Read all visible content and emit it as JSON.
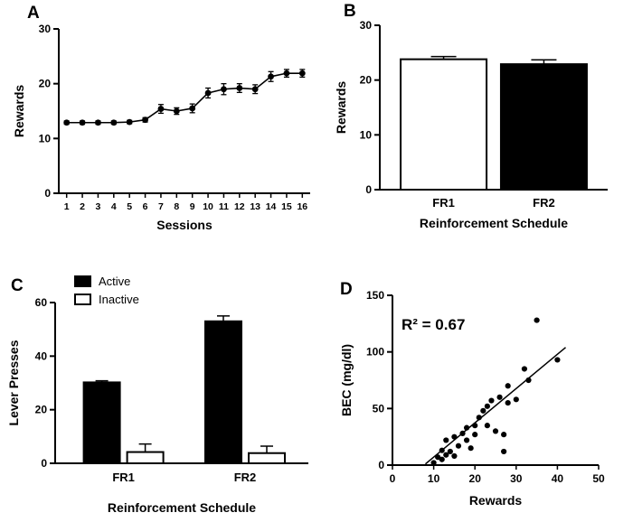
{
  "figure": {
    "panels": [
      {
        "label": "A"
      },
      {
        "label": "B"
      },
      {
        "label": "C"
      },
      {
        "label": "D"
      }
    ]
  },
  "chart_data": [
    {
      "panel": "A",
      "type": "line",
      "x": [
        1,
        2,
        3,
        4,
        5,
        6,
        7,
        8,
        9,
        10,
        11,
        12,
        13,
        14,
        15,
        16
      ],
      "values": [
        12.9,
        12.9,
        12.9,
        12.9,
        13.0,
        13.4,
        15.4,
        15.0,
        15.5,
        18.3,
        19.0,
        19.2,
        19.0,
        21.3,
        21.9,
        21.9
      ],
      "errors": [
        0.3,
        0.3,
        0.3,
        0.3,
        0.3,
        0.4,
        0.8,
        0.6,
        0.8,
        0.9,
        1.0,
        0.8,
        0.8,
        0.9,
        0.7,
        0.7
      ],
      "xlabel": "Sessions",
      "ylabel": "Rewards",
      "xlim": [
        0.5,
        16.5
      ],
      "ylim": [
        0,
        30
      ],
      "yticks": [
        0,
        10,
        20,
        30
      ],
      "marker_color": "#000000",
      "line_color": "#000000"
    },
    {
      "panel": "B",
      "type": "bar",
      "categories": [
        "FR1",
        "FR2"
      ],
      "values": [
        23.8,
        22.9
      ],
      "errors": [
        0.5,
        0.8
      ],
      "bar_colors": [
        "#ffffff",
        "#000000"
      ],
      "xlabel": "Reinforcement Schedule",
      "ylabel": "Rewards",
      "ylim": [
        0,
        30
      ],
      "yticks": [
        0,
        10,
        20,
        30
      ]
    },
    {
      "panel": "C",
      "type": "bar",
      "categories": [
        "FR1",
        "FR2"
      ],
      "series": [
        {
          "name": "Active",
          "values": [
            30.2,
            53.0
          ],
          "errors": [
            0.6,
            2.0
          ],
          "color": "#000000"
        },
        {
          "name": "Inactive",
          "values": [
            4.2,
            3.8
          ],
          "errors": [
            3.0,
            2.6
          ],
          "color": "#ffffff"
        }
      ],
      "legend_position": "top-left",
      "xlabel": "Reinforcement Schedule",
      "ylabel": "Lever Presses",
      "ylim": [
        0,
        60
      ],
      "yticks": [
        0,
        20,
        40,
        60
      ]
    },
    {
      "panel": "D",
      "type": "scatter",
      "points": [
        [
          10,
          2
        ],
        [
          11,
          7
        ],
        [
          12,
          5
        ],
        [
          12,
          13
        ],
        [
          13,
          9
        ],
        [
          13,
          22
        ],
        [
          14,
          12
        ],
        [
          15,
          8
        ],
        [
          15,
          25
        ],
        [
          16,
          17
        ],
        [
          17,
          28
        ],
        [
          18,
          22
        ],
        [
          18,
          33
        ],
        [
          19,
          15
        ],
        [
          20,
          35
        ],
        [
          20,
          27
        ],
        [
          21,
          42
        ],
        [
          22,
          48
        ],
        [
          23,
          35
        ],
        [
          23,
          52
        ],
        [
          24,
          57
        ],
        [
          25,
          30
        ],
        [
          26,
          60
        ],
        [
          27,
          12
        ],
        [
          27,
          27
        ],
        [
          28,
          55
        ],
        [
          28,
          70
        ],
        [
          30,
          58
        ],
        [
          32,
          85
        ],
        [
          33,
          75
        ],
        [
          35,
          128
        ],
        [
          40,
          93
        ]
      ],
      "regression_line": {
        "x1": 8,
        "y1": 1,
        "x2": 42,
        "y2": 104
      },
      "annotation": "R² = 0.67",
      "xlabel": "Rewards",
      "ylabel": "BEC (mg/dl)",
      "xlim": [
        0,
        50
      ],
      "xticks": [
        0,
        10,
        20,
        30,
        40,
        50
      ],
      "ylim": [
        0,
        150
      ],
      "yticks": [
        0,
        50,
        100,
        150
      ],
      "point_color": "#000000"
    }
  ]
}
